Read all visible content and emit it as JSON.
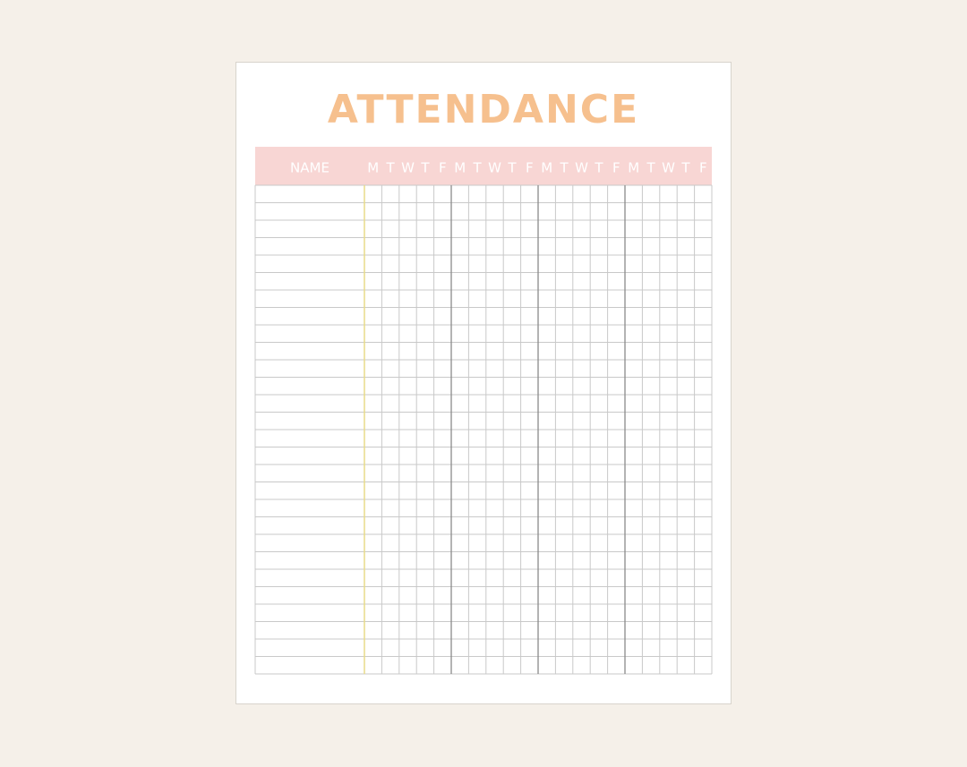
{
  "header": {
    "title": "ATTENDANCE"
  },
  "table": {
    "columns": [
      "NAME",
      "M",
      "T",
      "W",
      "T",
      "F",
      "M",
      "T",
      "W",
      "T",
      "F",
      "M",
      "T",
      "W",
      "T",
      "F",
      "M",
      "T",
      "W",
      "T",
      "F"
    ]
  }
}
